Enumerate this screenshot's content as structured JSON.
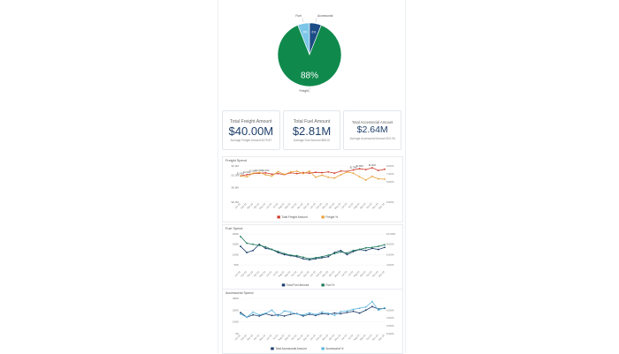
{
  "pie": {
    "slices": [
      {
        "label": "Freight",
        "value": 88,
        "color": "#0f8a4c",
        "text": "88%"
      },
      {
        "label": "Fuel",
        "value": 6,
        "color": "#7cc6e8",
        "text": "6%"
      },
      {
        "label": "Accessorial",
        "value": 6,
        "color": "#1c4c86",
        "text": "6%"
      }
    ]
  },
  "kpis": [
    {
      "title": "Total Freight Amount",
      "value": "$40.00M",
      "sub_label": "Average Freight Amount",
      "sub_value": "$179.87"
    },
    {
      "title": "Total Fuel Amount",
      "value": "$2.81M",
      "sub_label": "Average Fuel Amount",
      "sub_value": "$58.02"
    },
    {
      "title": "Total Accessorial Amount",
      "value": "$2.64M",
      "sub_label": "Average Accessorial Amount",
      "sub_value": "$21.06"
    }
  ],
  "chart_data": [
    {
      "type": "line",
      "title": "Freight Spend",
      "categories": [
        "Jan-22",
        "Feb-22",
        "Mar-22",
        "Apr-22",
        "May-22",
        "Jun-22",
        "Jul-22",
        "Aug-22",
        "Sep-22",
        "Oct-22",
        "Nov-22",
        "Dec-22",
        "Jan-23",
        "Feb-23",
        "Mar-23",
        "Apr-23",
        "May-23",
        "Jun-23",
        "Jul-23",
        "Aug-23",
        "Sep-23",
        "Oct-23",
        "Nov-23",
        "Dec-23"
      ],
      "series": [
        {
          "name": "Total Freight Amount",
          "axis": "left",
          "color": "#d13a2b",
          "values": [
            1.45,
            1.52,
            1.58,
            1.6,
            1.62,
            1.55,
            1.58,
            1.52,
            1.62,
            1.58,
            1.63,
            1.6,
            1.65,
            1.63,
            1.67,
            1.6,
            1.72,
            1.7,
            1.78,
            1.85,
            1.8,
            1.9,
            1.75,
            1.82
          ]
        },
        {
          "name": "Freight %",
          "axis": "right",
          "color": "#e8a23a",
          "values": [
            6.5,
            6.3,
            7.2,
            7.4,
            6.8,
            6.5,
            7.6,
            6.9,
            7.5,
            7.7,
            7.1,
            7.7,
            6.2,
            6.7,
            6.2,
            6.0,
            6.8,
            7.5,
            7.2,
            6.3,
            5.5,
            6.4,
            5.8,
            5.7
          ]
        }
      ],
      "y_left": {
        "ticks": [
          "$0.0M",
          "$0.8M",
          "$1.5M",
          "$2.0M"
        ],
        "min": 0,
        "max": 2.0,
        "tick_values": [
          0,
          0.8,
          1.5,
          2.0
        ]
      },
      "y_right": {
        "ticks": [
          "0.00%",
          "5.00%",
          "7.00%",
          "9.00%"
        ],
        "min": 0,
        "max": 9.0,
        "tick_values": [
          0,
          5,
          7,
          9
        ]
      },
      "data_labels": [
        "$1.45M",
        "$1.52M",
        "$1.58M",
        "$1.60M",
        "$1.62M",
        "$1.78M",
        "$1.85M",
        "$1.90M"
      ],
      "legend": "bottom"
    },
    {
      "type": "line",
      "title": "Fuel Spend",
      "categories": [
        "Jan-22",
        "Feb-22",
        "Mar-22",
        "Apr-22",
        "May-22",
        "Jun-22",
        "Jul-22",
        "Aug-22",
        "Sep-22",
        "Oct-22",
        "Nov-22",
        "Dec-22",
        "Jan-23",
        "Feb-23",
        "Mar-23",
        "Apr-23",
        "May-23",
        "Jun-23",
        "Jul-23",
        "Aug-23",
        "Sep-23",
        "Oct-23",
        "Nov-23",
        "Dec-23"
      ],
      "series": [
        {
          "name": "Total Fuel Amount",
          "axis": "left",
          "color": "#173a6a",
          "values": [
            140,
            110,
            120,
            150,
            130,
            125,
            110,
            100,
            95,
            90,
            80,
            75,
            80,
            85,
            90,
            110,
            120,
            100,
            115,
            125,
            120,
            130,
            125,
            135
          ]
        },
        {
          "name": "Fuel %",
          "axis": "right",
          "color": "#1f7a5a",
          "values": [
            9.5,
            8.2,
            8.0,
            7.8,
            7.5,
            7.0,
            6.6,
            6.2,
            5.9,
            5.8,
            5.5,
            5.2,
            5.4,
            5.6,
            5.9,
            6.2,
            6.5,
            6.3,
            6.8,
            7.0,
            7.3,
            7.4,
            7.6,
            7.9
          ]
        }
      ],
      "y_left": {
        "ticks": [
          "50K",
          "100K",
          "150K",
          "200K"
        ],
        "min": 25,
        "max": 200,
        "tick_values": [
          50,
          100,
          150,
          200
        ]
      },
      "y_right": {
        "ticks": [
          "4.00%",
          "6.00%",
          "8.00%",
          "10.00%"
        ],
        "min": 3,
        "max": 10,
        "tick_values": [
          4,
          6,
          8,
          10
        ]
      },
      "legend": "bottom"
    },
    {
      "type": "line",
      "title": "Accessorial Spend",
      "categories": [
        "Jan-22",
        "Feb-22",
        "Mar-22",
        "Apr-22",
        "May-22",
        "Jun-22",
        "Jul-22",
        "Aug-22",
        "Sep-22",
        "Oct-22",
        "Nov-22",
        "Dec-22",
        "Jan-23",
        "Feb-23",
        "Mar-23",
        "Apr-23",
        "May-23",
        "Jun-23",
        "Jul-23",
        "Aug-23",
        "Sep-23",
        "Oct-23",
        "Nov-23",
        "Dec-23"
      ],
      "series": [
        {
          "name": "Total Accessorial Amount",
          "axis": "left",
          "color": "#1f3f6b",
          "values": [
            180,
            140,
            160,
            150,
            170,
            155,
            160,
            150,
            165,
            170,
            150,
            165,
            155,
            170,
            165,
            175,
            170,
            180,
            190,
            175,
            200,
            230,
            210,
            215
          ]
        },
        {
          "name": "Accessorial %",
          "axis": "right",
          "color": "#5fb5de",
          "values": [
            5.0,
            4.2,
            5.5,
            4.8,
            5.2,
            6.0,
            4.5,
            5.8,
            5.5,
            5.0,
            4.8,
            5.3,
            4.9,
            5.5,
            5.2,
            4.7,
            5.6,
            5.8,
            6.2,
            6.5,
            6.8,
            8.2,
            6.0,
            6.6
          ]
        }
      ],
      "y_left": {
        "ticks": [
          "0K",
          "100K",
          "200K",
          "300K"
        ],
        "min": 0,
        "max": 300,
        "tick_values": [
          0,
          100,
          200,
          300
        ]
      },
      "y_right": {
        "ticks": [
          "0.00%",
          "2.00%",
          "4.00%",
          "6.00%"
        ],
        "min": 0,
        "max": 9,
        "tick_values": [
          0,
          2,
          4,
          6
        ]
      },
      "legend": "bottom"
    }
  ]
}
